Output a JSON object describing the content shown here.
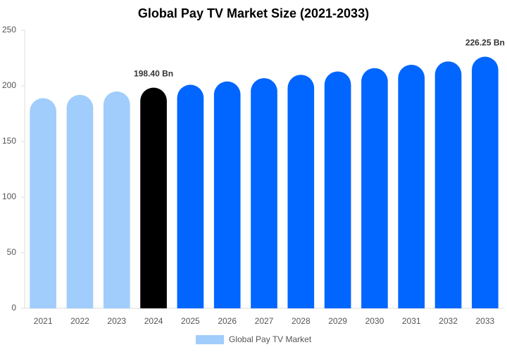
{
  "chart_data": {
    "type": "bar",
    "title": "Global Pay TV Market Size (2021-2033)",
    "categories": [
      "2021",
      "2022",
      "2023",
      "2024",
      "2025",
      "2026",
      "2027",
      "2028",
      "2029",
      "2030",
      "2031",
      "2032",
      "2033"
    ],
    "series": [
      {
        "name": "Global Pay TV Market",
        "color": "#a0cdfc",
        "values": [
          189,
          192,
          195,
          198.4,
          201,
          204,
          207,
          210,
          213,
          216,
          219,
          222,
          226.25
        ],
        "value_labels": [
          null,
          null,
          null,
          "198.40 Bn",
          null,
          null,
          null,
          null,
          null,
          null,
          null,
          null,
          "226.25 Bn"
        ],
        "colors": [
          "#a0cdfc",
          "#a0cdfc",
          "#a0cdfc",
          "#000000",
          "#0066ff",
          "#0066ff",
          "#0066ff",
          "#0066ff",
          "#0066ff",
          "#0066ff",
          "#0066ff",
          "#0066ff",
          "#0066ff"
        ]
      }
    ],
    "ylim": [
      0,
      250
    ],
    "yticks": [
      0,
      50,
      100,
      150,
      200,
      250
    ],
    "grid": false
  }
}
